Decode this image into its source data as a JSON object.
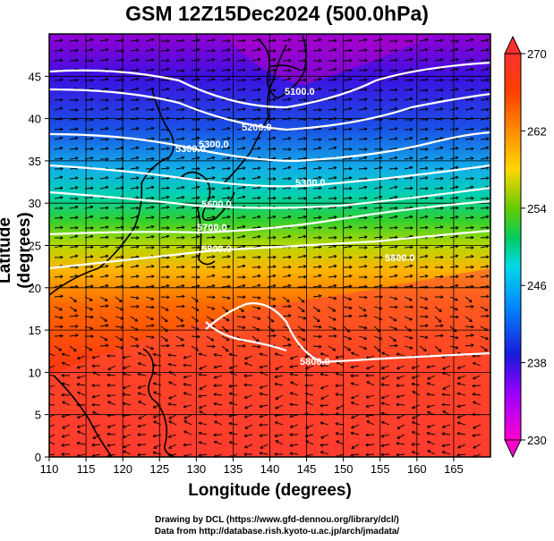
{
  "title": "GSM 12Z15Dec2024 (500.0hPa)",
  "xlabel": "Longitude (degrees)",
  "ylabel": "Latitude  (degrees)",
  "credits": [
    "Drawing by DCL (https://www.gfd-dennou.org/library/dcl/)",
    "Data from http://database.rish.kyoto-u.ac.jp/arch/jmadata/"
  ],
  "map": {
    "lon_range": [
      110,
      170
    ],
    "lat_range": [
      0,
      50
    ],
    "x_ticks": [
      110,
      115,
      120,
      125,
      130,
      135,
      140,
      145,
      150,
      155,
      160,
      165
    ],
    "y_ticks": [
      0,
      5,
      10,
      15,
      20,
      25,
      30,
      35,
      40,
      45
    ],
    "grid": true,
    "shaded_field": "temperature (K)",
    "colorbar": {
      "min": 230,
      "max": 270,
      "ticks": [
        230,
        238,
        246,
        254,
        262,
        270
      ],
      "colors": [
        "#ff00cc",
        "#9900ff",
        "#1a1ad9",
        "#008cff",
        "#00d9e6",
        "#00cc66",
        "#66cc00",
        "#ffd700",
        "#ff8c00",
        "#ff4000",
        "#ff3030"
      ]
    },
    "contour_labels": [
      "5100.0",
      "5200.0",
      "5300.0",
      "5300.0",
      "5300.0",
      "5600.0",
      "5700.0",
      "5800.0",
      "5800.0",
      "5800.0"
    ],
    "colors": {
      "contour": "#ffffff",
      "coast": "#000000",
      "vectors": "#000000"
    }
  }
}
